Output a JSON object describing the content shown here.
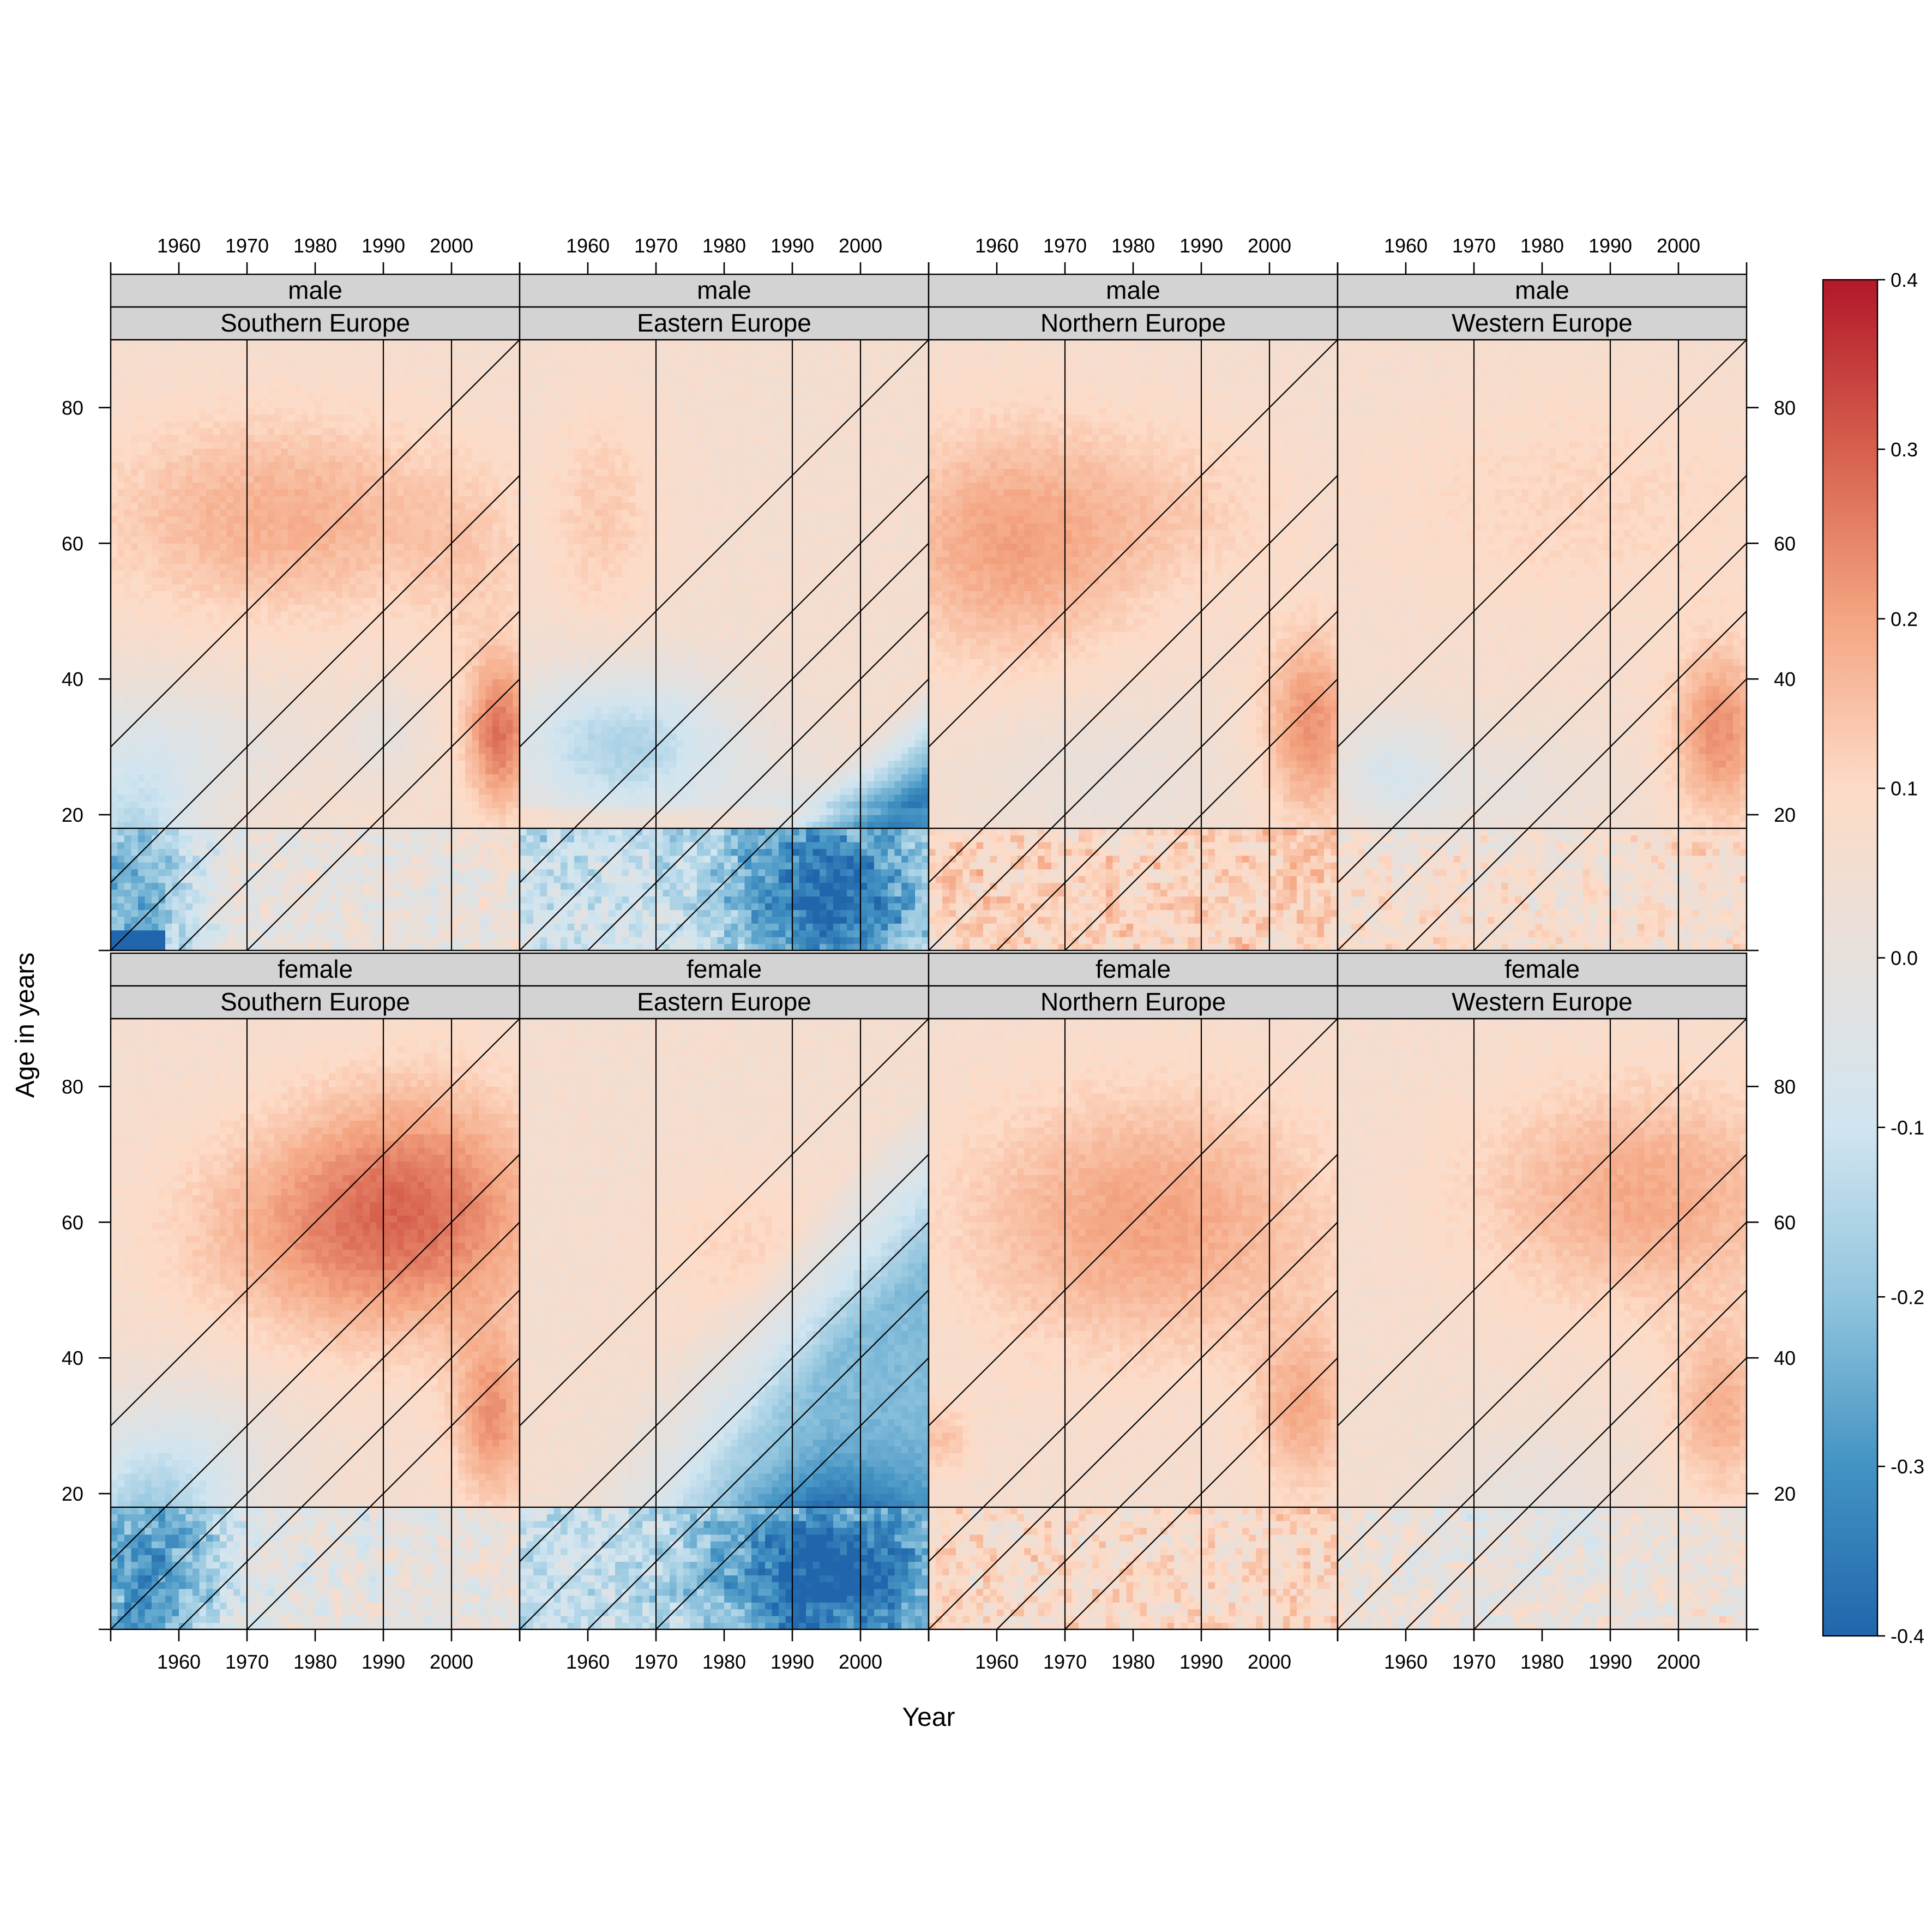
{
  "chart_data": {
    "type": "heatmap",
    "xlabel": "Year",
    "ylabel": "Age in years",
    "xlim": [
      1950,
      2010
    ],
    "ylim": [
      0,
      90
    ],
    "x_ticks": [
      1960,
      1970,
      1980,
      1990,
      2000
    ],
    "x_tick_labels": [
      "1960",
      "1970",
      "1980",
      "1990",
      "2000"
    ],
    "y_ticks": [
      20,
      40,
      60,
      80
    ],
    "y_tick_labels": [
      "20",
      "40",
      "60",
      "80"
    ],
    "reference_lines": {
      "vertical_years": [
        1970,
        1990,
        2000
      ],
      "horizontal_age": 18,
      "diagonal_birth_years": [
        1920,
        1940,
        1950,
        1960,
        1970
      ]
    },
    "colorkey": {
      "range": [
        -0.4,
        0.4
      ],
      "ticks": [
        -0.4,
        -0.3,
        -0.2,
        -0.1,
        0.0,
        0.1,
        0.2,
        0.3,
        0.4
      ],
      "tick_labels": [
        "-0.4",
        "-0.3",
        "-0.2",
        "-0.1",
        "0.0",
        "0.1",
        "0.2",
        "0.3",
        "0.4"
      ],
      "palette": [
        "#2166ac",
        "#4393c3",
        "#92c5de",
        "#d1e5f0",
        "#e6e0dc",
        "#fddbc7",
        "#f4a582",
        "#d6604d",
        "#b2182b"
      ]
    },
    "panels": [
      {
        "sex": "male",
        "region": "Southern Europe",
        "features": [
          {
            "type": "gauss",
            "x": 1975,
            "y": 64,
            "sx": 20,
            "sy": 11,
            "a": 0.12
          },
          {
            "type": "gauss",
            "x": 2003,
            "y": 56,
            "sx": 6,
            "sy": 10,
            "a": 0.04
          },
          {
            "type": "gauss",
            "x": 2007,
            "y": 32,
            "sx": 3.5,
            "sy": 8,
            "a": 0.21
          },
          {
            "type": "gauss",
            "x": 1962,
            "y": 30,
            "sx": 12,
            "sy": 7,
            "a": -0.07
          },
          {
            "type": "gauss",
            "x": 1990,
            "y": 32,
            "sx": 4,
            "sy": 5,
            "a": -0.06
          },
          {
            "type": "gauss",
            "x": 1953,
            "y": 8,
            "sx": 7,
            "sy": 14,
            "a": -0.26
          },
          {
            "type": "band",
            "x0": 1950,
            "x1": 1958,
            "y0": 0,
            "y1": 3,
            "a": -0.3
          },
          {
            "type": "noise",
            "y0": 0,
            "y1": 18,
            "amp": 0.09,
            "bias": -0.05
          }
        ]
      },
      {
        "sex": "male",
        "region": "Eastern Europe",
        "features": [
          {
            "type": "gauss",
            "x": 1962,
            "y": 64,
            "sx": 6,
            "sy": 12,
            "a": 0.07
          },
          {
            "type": "wedge",
            "x0": 1970,
            "w": 16,
            "a": -0.37
          },
          {
            "type": "gauss",
            "x": 1965,
            "y": 30,
            "sx": 12,
            "sy": 8,
            "a": -0.22
          },
          {
            "type": "band",
            "x0": 1950,
            "x1": 2010,
            "y0": 18,
            "y1": 21,
            "a": 0.06
          },
          {
            "type": "gauss",
            "x": 1995,
            "y": 8,
            "sx": 10,
            "sy": 9,
            "a": -0.32
          },
          {
            "type": "noise",
            "y0": 0,
            "y1": 18,
            "amp": 0.1,
            "bias": -0.15
          }
        ]
      },
      {
        "sex": "male",
        "region": "Northern Europe",
        "features": [
          {
            "type": "gauss",
            "x": 1962,
            "y": 60,
            "sx": 14,
            "sy": 13,
            "a": 0.14
          },
          {
            "type": "gauss",
            "x": 1988,
            "y": 66,
            "sx": 12,
            "sy": 9,
            "a": 0.05
          },
          {
            "type": "gauss",
            "x": 2006,
            "y": 33,
            "sx": 5,
            "sy": 10,
            "a": 0.17
          },
          {
            "type": "gauss",
            "x": 1975,
            "y": 26,
            "sx": 14,
            "sy": 8,
            "a": -0.05
          },
          {
            "type": "noise",
            "y0": 0,
            "y1": 18,
            "amp": 0.09,
            "bias": 0.05
          }
        ]
      },
      {
        "sex": "male",
        "region": "Western Europe",
        "features": [
          {
            "type": "gauss",
            "x": 1985,
            "y": 66,
            "sx": 22,
            "sy": 12,
            "a": 0.05
          },
          {
            "type": "gauss",
            "x": 2006,
            "y": 32,
            "sx": 5,
            "sy": 9,
            "a": 0.17
          },
          {
            "type": "gauss",
            "x": 1958,
            "y": 26,
            "sx": 6,
            "sy": 6,
            "a": -0.12
          },
          {
            "type": "gauss",
            "x": 1975,
            "y": 24,
            "sx": 10,
            "sy": 6,
            "a": -0.05
          },
          {
            "type": "noise",
            "y0": 0,
            "y1": 18,
            "amp": 0.09,
            "bias": 0.0
          }
        ]
      },
      {
        "sex": "female",
        "region": "Southern Europe",
        "features": [
          {
            "type": "gauss",
            "x": 1995,
            "y": 62,
            "sx": 14,
            "sy": 13,
            "a": 0.2
          },
          {
            "type": "gauss",
            "x": 1975,
            "y": 58,
            "sx": 14,
            "sy": 11,
            "a": 0.08
          },
          {
            "type": "gauss",
            "x": 2006,
            "y": 31,
            "sx": 4,
            "sy": 9,
            "a": 0.16
          },
          {
            "type": "gauss",
            "x": 1962,
            "y": 25,
            "sx": 10,
            "sy": 8,
            "a": -0.09
          },
          {
            "type": "gauss",
            "x": 1955,
            "y": 8,
            "sx": 8,
            "sy": 12,
            "a": -0.28
          },
          {
            "type": "noise",
            "y0": 0,
            "y1": 18,
            "amp": 0.1,
            "bias": -0.07
          }
        ]
      },
      {
        "sex": "female",
        "region": "Eastern Europe",
        "features": [
          {
            "type": "gauss",
            "x": 1983,
            "y": 56,
            "sx": 9,
            "sy": 8,
            "a": 0.05
          },
          {
            "type": "wedge",
            "x0": 1930,
            "w": 26,
            "a": -0.28
          },
          {
            "type": "gauss",
            "x": 1995,
            "y": 8,
            "sx": 12,
            "sy": 9,
            "a": -0.32
          },
          {
            "type": "noise",
            "y0": 0,
            "y1": 18,
            "amp": 0.1,
            "bias": -0.17
          }
        ]
      },
      {
        "sex": "female",
        "region": "Northern Europe",
        "features": [
          {
            "type": "gauss",
            "x": 1982,
            "y": 60,
            "sx": 20,
            "sy": 14,
            "a": 0.14
          },
          {
            "type": "gauss",
            "x": 2005,
            "y": 32,
            "sx": 5,
            "sy": 9,
            "a": 0.12
          },
          {
            "type": "gauss",
            "x": 1952,
            "y": 28,
            "sx": 3,
            "sy": 4,
            "a": 0.08
          },
          {
            "type": "noise",
            "y0": 0,
            "y1": 18,
            "amp": 0.1,
            "bias": 0.02
          }
        ]
      },
      {
        "sex": "female",
        "region": "Western Europe",
        "features": [
          {
            "type": "gauss",
            "x": 1995,
            "y": 64,
            "sx": 18,
            "sy": 12,
            "a": 0.13
          },
          {
            "type": "gauss",
            "x": 2006,
            "y": 32,
            "sx": 5,
            "sy": 9,
            "a": 0.12
          },
          {
            "type": "gauss",
            "x": 1978,
            "y": 18,
            "sx": 10,
            "sy": 8,
            "a": -0.06
          },
          {
            "type": "noise",
            "y0": 0,
            "y1": 18,
            "amp": 0.1,
            "bias": -0.04
          }
        ]
      }
    ]
  }
}
